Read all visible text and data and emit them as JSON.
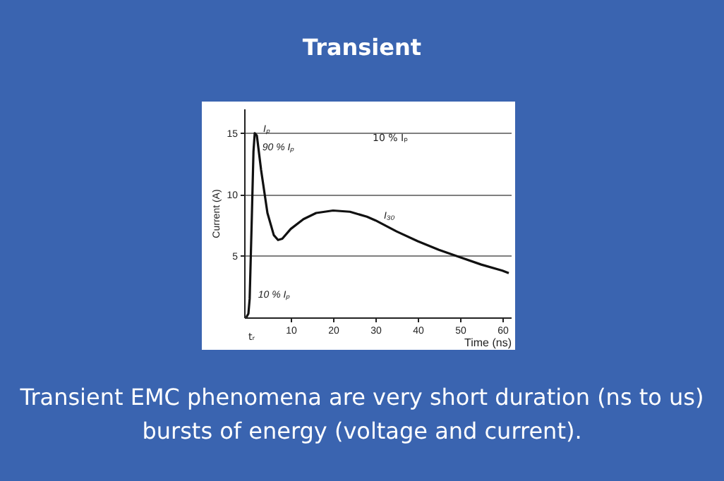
{
  "chart_data": {
    "type": "line",
    "title": "Transient",
    "xlabel": "Time (ns)",
    "ylabel": "Current (A)",
    "x": [
      -0.5,
      0,
      0.3,
      0.8,
      1.2,
      1.5,
      2,
      3,
      4.5,
      6,
      7,
      8,
      10,
      13,
      16,
      20,
      24,
      28,
      30,
      35,
      40,
      45,
      50,
      55,
      60,
      61.5
    ],
    "series": [
      {
        "color": "#111111",
        "values": [
          0,
          0.3,
          1.5,
          8,
          13.5,
          15,
          14.8,
          12,
          8.5,
          6.7,
          6.3,
          6.4,
          7.2,
          8.0,
          8.5,
          8.7,
          8.6,
          8.2,
          7.9,
          7.0,
          6.2,
          5.5,
          4.9,
          4.3,
          3.8,
          3.6
        ]
      }
    ],
    "xlim": [
      -1,
      62
    ],
    "xticks": [
      10,
      20,
      30,
      40,
      50,
      60
    ],
    "ylim": [
      0,
      17
    ],
    "yticks": [
      5,
      10,
      15
    ],
    "grid": "y",
    "line_style": "solid",
    "marker": "none",
    "annotations": [
      {
        "text": "Iₚ",
        "x": 1.5,
        "y": 15
      },
      {
        "text": "90 % Iₚ",
        "x": 1.3,
        "y": 13.5
      },
      {
        "text": "10 % Iₚ",
        "x": 0.3,
        "y": 1.5
      },
      {
        "text": "I₃₀",
        "x": 30,
        "y": 7.9
      },
      "tᵣ",
      "10 % Iₚ",
      "Transient EMC phenomena are very short duration (ns to us) bursts of energy (voltage and current)."
    ]
  }
}
